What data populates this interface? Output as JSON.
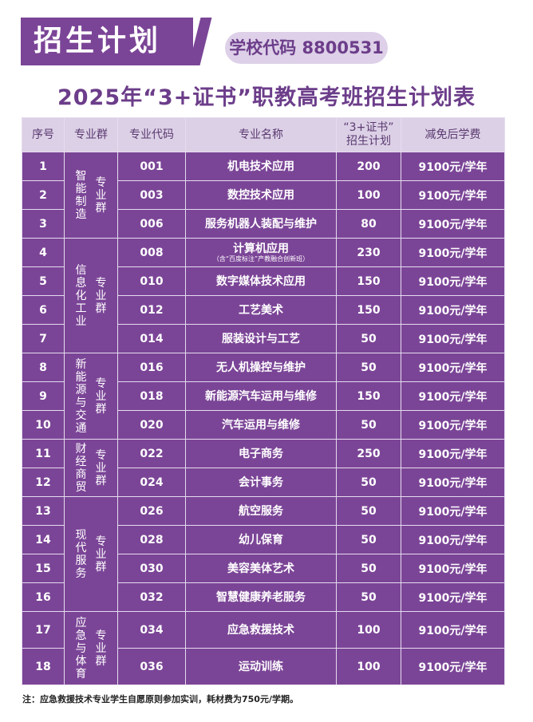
{
  "banner": "招生计划",
  "school_code": "学校代码 8800531",
  "title": "2025年“3+证书”职教高考班招生计划表",
  "headers": [
    "序号",
    "专业群",
    "专业代码",
    "专业名称",
    "“3+证书”",
    "招生计划",
    "减免后学费"
  ],
  "groups": [
    {
      "name": "智能制造",
      "suffix": "专业群",
      "rows": [
        {
          "no": "1",
          "code": "001",
          "major": "机电技术应用",
          "plan": "200",
          "fee": "9100元/学年"
        },
        {
          "no": "2",
          "code": "003",
          "major": "数控技术应用",
          "plan": "100",
          "fee": "9100元/学年"
        },
        {
          "no": "3",
          "code": "006",
          "major": "服务机器人装配与维护",
          "plan": "80",
          "fee": "9100元/学年"
        }
      ]
    },
    {
      "name": "信息化工业",
      "suffix": "专业群",
      "rows": [
        {
          "no": "4",
          "code": "008",
          "major": "计算机应用",
          "note": "（含“百度标注”产教融合创新班）",
          "plan": "230",
          "fee": "9100元/学年"
        },
        {
          "no": "5",
          "code": "010",
          "major": "数字媒体技术应用",
          "plan": "150",
          "fee": "9100元/学年"
        },
        {
          "no": "6",
          "code": "012",
          "major": "工艺美术",
          "plan": "150",
          "fee": "9100元/学年"
        },
        {
          "no": "7",
          "code": "014",
          "major": "服装设计与工艺",
          "plan": "50",
          "fee": "9100元/学年"
        }
      ]
    },
    {
      "name": "新能源与交通",
      "suffix": "专业群",
      "rows": [
        {
          "no": "8",
          "code": "016",
          "major": "无人机操控与维护",
          "plan": "50",
          "fee": "9100元/学年"
        },
        {
          "no": "9",
          "code": "018",
          "major": "新能源汽车运用与维修",
          "plan": "150",
          "fee": "9100元/学年"
        },
        {
          "no": "10",
          "code": "020",
          "major": "汽车运用与维修",
          "plan": "50",
          "fee": "9100元/学年"
        }
      ]
    },
    {
      "name": "财经商贸",
      "suffix": "专业群",
      "rows": [
        {
          "no": "11",
          "code": "022",
          "major": "电子商务",
          "plan": "250",
          "fee": "9100元/学年"
        },
        {
          "no": "12",
          "code": "024",
          "major": "会计事务",
          "plan": "50",
          "fee": "9100元/学年"
        }
      ]
    },
    {
      "name": "现代服务",
      "suffix": "专业群",
      "rows": [
        {
          "no": "13",
          "code": "026",
          "major": "航空服务",
          "plan": "50",
          "fee": "9100元/学年"
        },
        {
          "no": "14",
          "code": "028",
          "major": "幼儿保育",
          "plan": "50",
          "fee": "9100元/学年"
        },
        {
          "no": "15",
          "code": "030",
          "major": "美容美体艺术",
          "plan": "50",
          "fee": "9100元/学年"
        },
        {
          "no": "16",
          "code": "032",
          "major": "智慧健康养老服务",
          "plan": "50",
          "fee": "9100元/学年"
        }
      ]
    },
    {
      "name": "应急与体育",
      "suffix": "专业群",
      "tall": true,
      "rows": [
        {
          "no": "17",
          "code": "034",
          "major": "应急救援技术",
          "plan": "100",
          "fee": "9100元/学年"
        },
        {
          "no": "18",
          "code": "036",
          "major": "运动训练",
          "plan": "100",
          "fee": "9100元/学年"
        }
      ]
    }
  ],
  "footnote": "注：应急救援技术专业学生自愿原则参加实训，耗材费为750元/学期。",
  "colors": {
    "primary": "#7b4597",
    "header_bg": "#dcd0e6",
    "pill_bg": "#ddd0e8"
  }
}
